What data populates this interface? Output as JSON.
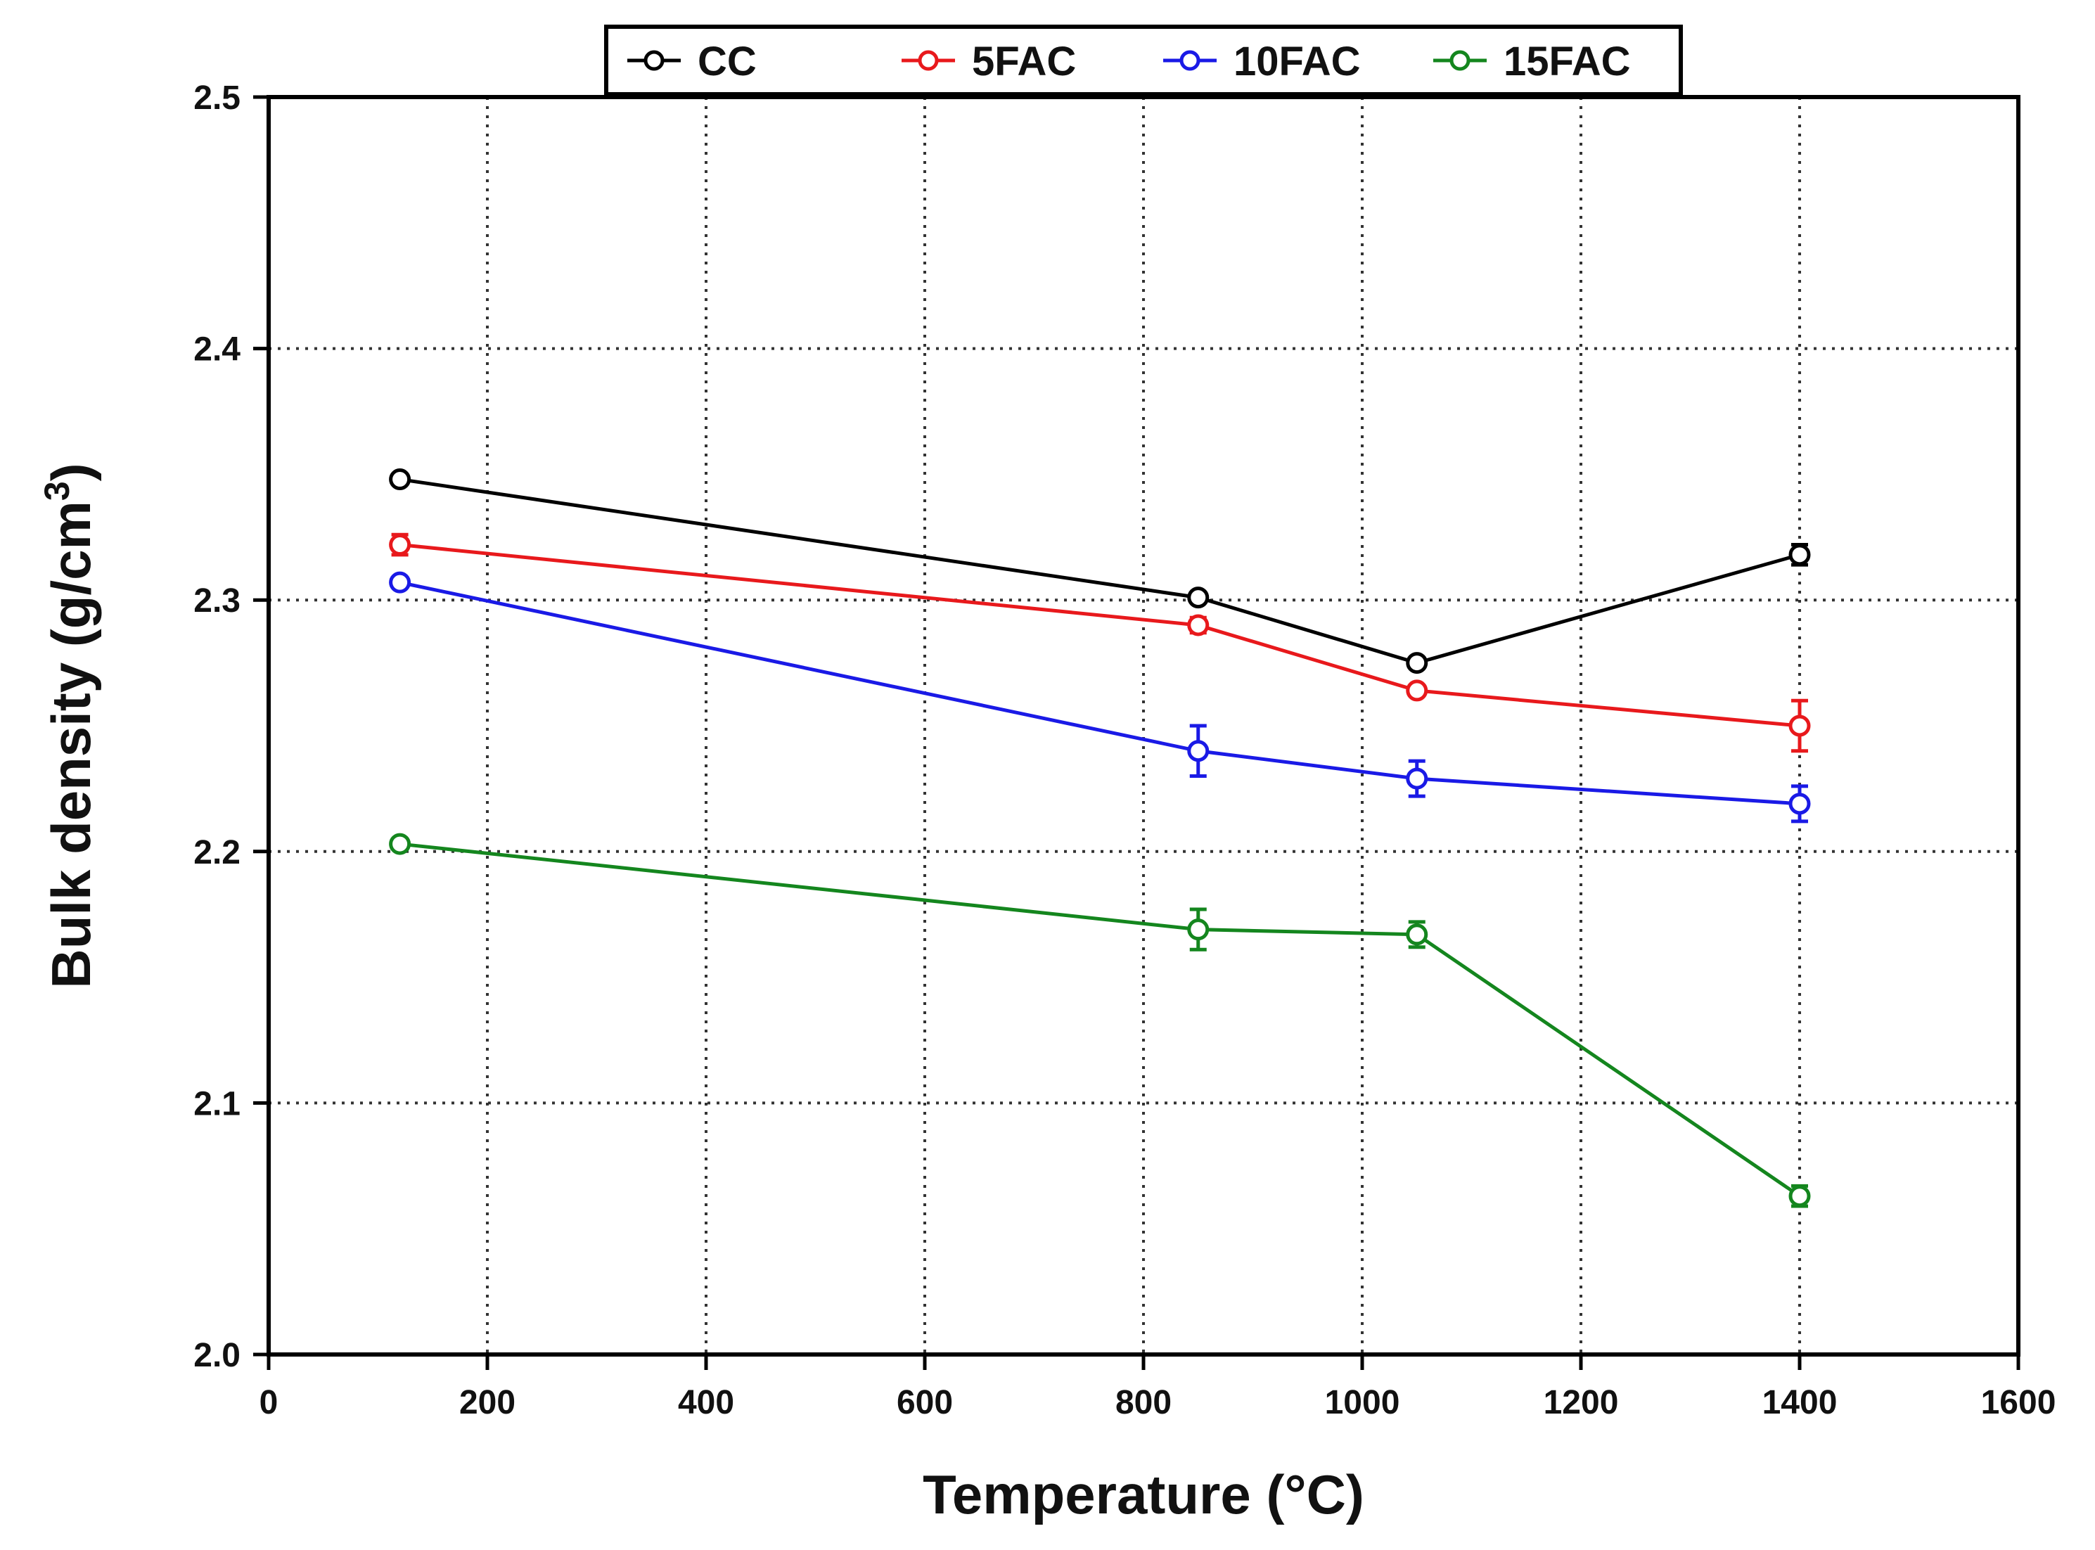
{
  "chart_data": {
    "type": "line",
    "title": "",
    "xlabel": "Temperature (°C)",
    "ylabel": "Bulk density (g/cm",
    "ylabel_superscript": "3",
    "ylabel_close": ")",
    "xlim": [
      0,
      1600
    ],
    "ylim": [
      2.0,
      2.5
    ],
    "xticks": [
      0,
      200,
      400,
      600,
      800,
      1000,
      1200,
      1400,
      1600
    ],
    "yticks": [
      2.0,
      2.1,
      2.2,
      2.3,
      2.4,
      2.5
    ],
    "xtick_labels": [
      "0",
      "200",
      "400",
      "600",
      "800",
      "1000",
      "1200",
      "1400",
      "1600"
    ],
    "ytick_labels": [
      "2.0",
      "2.1",
      "2.2",
      "2.3",
      "2.4",
      "2.5"
    ],
    "grid": "dotted",
    "legend_position": "top",
    "x": [
      120,
      850,
      1050,
      1400
    ],
    "series": [
      {
        "name": "CC",
        "color": "#000000",
        "values": [
          2.348,
          2.301,
          2.275,
          2.318
        ],
        "errors": [
          0.002,
          0.002,
          0.002,
          0.004
        ]
      },
      {
        "name": "5FAC",
        "color": "#e8191c",
        "values": [
          2.322,
          2.29,
          2.264,
          2.25
        ],
        "errors": [
          0.004,
          0.003,
          0.002,
          0.01
        ]
      },
      {
        "name": "10FAC",
        "color": "#1a1ae6",
        "values": [
          2.307,
          2.24,
          2.229,
          2.219
        ],
        "errors": [
          0.002,
          0.01,
          0.007,
          0.007
        ]
      },
      {
        "name": "15FAC",
        "color": "#14861e",
        "values": [
          2.203,
          2.169,
          2.167,
          2.063
        ],
        "errors": [
          0.002,
          0.008,
          0.005,
          0.004
        ]
      }
    ]
  }
}
